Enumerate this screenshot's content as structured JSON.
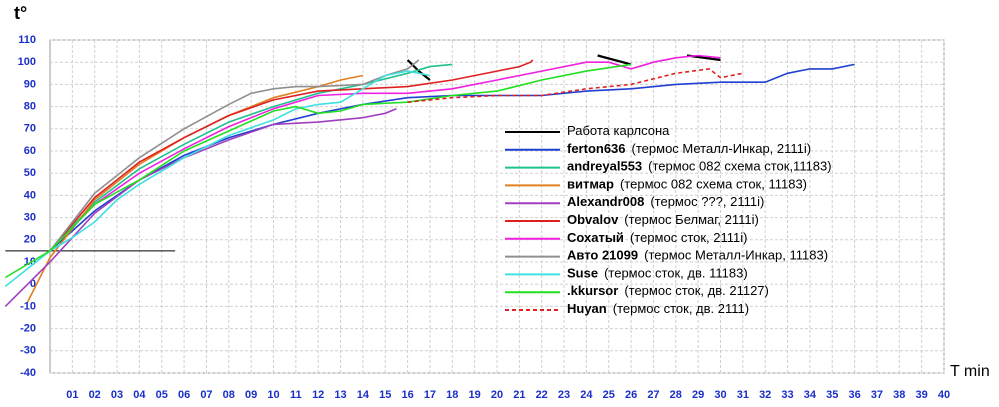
{
  "chart_data": {
    "type": "line",
    "y_label": "t°",
    "x_label": "T min",
    "xlim": [
      0,
      40
    ],
    "ylim": [
      -40,
      110
    ],
    "xticks": [
      {
        "value": 1,
        "label": "01"
      },
      {
        "value": 2,
        "label": "02"
      },
      {
        "value": 3,
        "label": "03"
      },
      {
        "value": 4,
        "label": "04"
      },
      {
        "value": 5,
        "label": "05"
      },
      {
        "value": 6,
        "label": "06"
      },
      {
        "value": 7,
        "label": "07"
      },
      {
        "value": 8,
        "label": "08"
      },
      {
        "value": 9,
        "label": "09"
      },
      10,
      11,
      12,
      13,
      14,
      15,
      16,
      17,
      18,
      19,
      20,
      21,
      22,
      23,
      24,
      25,
      26,
      27,
      28,
      29,
      30,
      31,
      32,
      33,
      34,
      35,
      36,
      37,
      38,
      39,
      40
    ],
    "yticks": [
      -40,
      -30,
      -20,
      -10,
      0,
      10,
      20,
      30,
      40,
      50,
      60,
      70,
      80,
      90,
      100,
      110
    ],
    "grid": true,
    "reference_line": {
      "x": [
        -2,
        5.6
      ],
      "y": 15,
      "color": "#000000"
    },
    "series": [
      {
        "name": "Работа карлсона",
        "color": "#000000",
        "x": [
          16,
          16.5,
          17,
          null,
          24.5,
          26,
          null,
          28.5,
          30
        ],
        "values": [
          101,
          96,
          92,
          null,
          103,
          99,
          null,
          103,
          101
        ]
      },
      {
        "name": "ferton636",
        "description": "(термос Металл-Инкар, 2111i)",
        "color": "#1f3fd0",
        "x": [
          0,
          2,
          4,
          6,
          8,
          10,
          12,
          14,
          16,
          18,
          20,
          22,
          24,
          26,
          28,
          30,
          32,
          33,
          34,
          35,
          36
        ],
        "values": [
          15,
          33,
          47,
          58,
          66,
          72,
          77,
          81,
          84,
          85,
          85,
          85,
          87,
          88,
          90,
          91,
          91,
          95,
          97,
          97,
          99
        ]
      },
      {
        "name": "andreyal553",
        "description": "(термос 082 схема сток,11183)",
        "color": "#20c090",
        "x": [
          0,
          2,
          4,
          6,
          8,
          10,
          12,
          14,
          16,
          17,
          18
        ],
        "values": [
          15,
          37,
          52,
          63,
          73,
          80,
          86,
          90,
          95,
          98,
          99
        ]
      },
      {
        "name": "витмар",
        "description": "(термос 082 схема сток, 11183)",
        "color": "#e08020",
        "x": [
          -1,
          0,
          2,
          4,
          6,
          8,
          10,
          12,
          13,
          14
        ],
        "values": [
          -8,
          12,
          38,
          54,
          66,
          76,
          84,
          89,
          92,
          94
        ]
      },
      {
        "name": "Alexandr008",
        "description": "(термос ???, 2111i)",
        "color": "#a040c0",
        "x": [
          -2,
          0,
          2,
          4,
          6,
          8,
          10,
          12,
          14,
          15,
          15.5
        ],
        "values": [
          -10,
          10,
          32,
          47,
          57,
          65,
          72,
          73,
          75,
          77,
          79
        ]
      },
      {
        "name": "Obvalov",
        "description": "(термос Белмаг, 2111i)",
        "color": "#e02020",
        "x": [
          0,
          2,
          4,
          6,
          8,
          10,
          12,
          14,
          16,
          18,
          20,
          21,
          21.5,
          21.6
        ],
        "values": [
          15,
          39,
          55,
          66,
          76,
          83,
          87,
          88,
          89,
          92,
          96,
          98,
          100,
          101
        ]
      },
      {
        "name": "Сохатый",
        "description": "(термос сток, 2111i)",
        "color": "#f020e0",
        "x": [
          0,
          2,
          4,
          6,
          8,
          10,
          12,
          14,
          16,
          18,
          20,
          22,
          24,
          25,
          26,
          27,
          28,
          29,
          30
        ],
        "values": [
          15,
          36,
          50,
          61,
          71,
          79,
          85,
          86,
          86,
          88,
          92,
          96,
          100,
          100,
          97,
          100,
          102,
          103,
          102
        ]
      },
      {
        "name": "Авто 21099",
        "description": "(термос Металл-Инкар, 11183)",
        "color": "#909090",
        "x": [
          0,
          2,
          4,
          6,
          8,
          9,
          10,
          11,
          12,
          14,
          15,
          16,
          16.5
        ],
        "values": [
          15,
          41,
          57,
          70,
          81,
          86,
          88,
          89,
          89,
          90,
          94,
          97,
          101
        ]
      },
      {
        "name": "Suse",
        "description": "(термос сток, дв. 11183)",
        "color": "#40e0e0",
        "x": [
          -2,
          0,
          1,
          2,
          3,
          4,
          6,
          8,
          10,
          11,
          12,
          13,
          14,
          15,
          16,
          17
        ],
        "values": [
          -1,
          15,
          21,
          28,
          38,
          45,
          57,
          67,
          74,
          79,
          81,
          82,
          88,
          94,
          96,
          94
        ]
      },
      {
        "name": ".kkursor",
        "description": "(термос сток, дв. 21127)",
        "color": "#20e020",
        "x": [
          -2,
          0,
          2,
          4,
          6,
          8,
          10,
          11,
          12,
          13,
          14,
          16,
          18,
          20,
          22,
          24,
          26
        ],
        "values": [
          3,
          15,
          36,
          47,
          60,
          69,
          78,
          80,
          77,
          78,
          81,
          82,
          85,
          87,
          92,
          96,
          99
        ]
      },
      {
        "name": "Huyan",
        "description": "(термос сток, дв. 2111)",
        "color": "#e02020",
        "dashed": true,
        "x": [
          16,
          18,
          20,
          22,
          24,
          26,
          28,
          29.5,
          30,
          31
        ],
        "values": [
          82,
          84,
          85,
          85,
          88,
          90,
          95,
          97,
          93,
          95
        ]
      }
    ]
  }
}
